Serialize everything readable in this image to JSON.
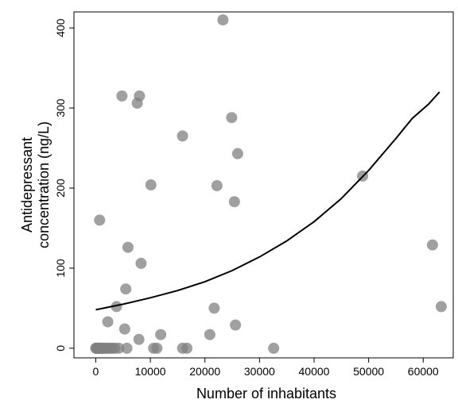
{
  "chart_data": {
    "type": "scatter",
    "title": "",
    "xlabel": "Number of inhabitants",
    "ylabel_line1": "Antidepressant",
    "ylabel_line2": "concentration (ng/L)",
    "xlim": [
      -4000,
      65500
    ],
    "ylim": [
      -12,
      420
    ],
    "xticks": [
      0,
      10000,
      20000,
      30000,
      40000,
      50000,
      60000
    ],
    "xtick_labels": [
      "0",
      "10000",
      "20000",
      "30000",
      "40000",
      "50000",
      "60000"
    ],
    "yticks": [
      0,
      100,
      200,
      300,
      400
    ],
    "ytick_labels": [
      "0",
      "100",
      "200",
      "300",
      "400"
    ],
    "grid": false,
    "legend": "none",
    "point_color": "#808080",
    "curve_color": "#000000",
    "points": [
      {
        "x": 0,
        "y": 0
      },
      {
        "x": 100,
        "y": 0
      },
      {
        "x": 200,
        "y": 0
      },
      {
        "x": 300,
        "y": 0
      },
      {
        "x": 400,
        "y": 0
      },
      {
        "x": 500,
        "y": 0
      },
      {
        "x": 600,
        "y": 0
      },
      {
        "x": 700,
        "y": 0
      },
      {
        "x": 800,
        "y": 0
      },
      {
        "x": 900,
        "y": 0
      },
      {
        "x": 1000,
        "y": 0
      },
      {
        "x": 1200,
        "y": 0
      },
      {
        "x": 1500,
        "y": 0
      },
      {
        "x": 1800,
        "y": 0
      },
      {
        "x": 2000,
        "y": 0
      },
      {
        "x": 2400,
        "y": 0
      },
      {
        "x": 2800,
        "y": 0
      },
      {
        "x": 3100,
        "y": 0
      },
      {
        "x": 3500,
        "y": 0
      },
      {
        "x": 4200,
        "y": 0
      },
      {
        "x": 5700,
        "y": 0
      },
      {
        "x": 10600,
        "y": 0
      },
      {
        "x": 11200,
        "y": 0
      },
      {
        "x": 15900,
        "y": 0
      },
      {
        "x": 16700,
        "y": 0
      },
      {
        "x": 32600,
        "y": 0
      },
      {
        "x": 700,
        "y": 160
      },
      {
        "x": 2200,
        "y": 33
      },
      {
        "x": 3800,
        "y": 52
      },
      {
        "x": 4800,
        "y": 315
      },
      {
        "x": 5300,
        "y": 24
      },
      {
        "x": 5500,
        "y": 74
      },
      {
        "x": 5900,
        "y": 126
      },
      {
        "x": 7600,
        "y": 306
      },
      {
        "x": 8000,
        "y": 315
      },
      {
        "x": 7900,
        "y": 11
      },
      {
        "x": 8300,
        "y": 106
      },
      {
        "x": 10100,
        "y": 204
      },
      {
        "x": 11900,
        "y": 17
      },
      {
        "x": 15900,
        "y": 265
      },
      {
        "x": 20900,
        "y": 17
      },
      {
        "x": 21700,
        "y": 50
      },
      {
        "x": 22200,
        "y": 203
      },
      {
        "x": 23300,
        "y": 410
      },
      {
        "x": 24900,
        "y": 288
      },
      {
        "x": 25400,
        "y": 183
      },
      {
        "x": 25600,
        "y": 29
      },
      {
        "x": 26000,
        "y": 243
      },
      {
        "x": 48900,
        "y": 215
      },
      {
        "x": 61700,
        "y": 129
      },
      {
        "x": 63300,
        "y": 52
      }
    ],
    "fitted_curve": [
      {
        "x": 0,
        "y": 48
      },
      {
        "x": 5000,
        "y": 55
      },
      {
        "x": 10000,
        "y": 63
      },
      {
        "x": 15000,
        "y": 72
      },
      {
        "x": 20000,
        "y": 83
      },
      {
        "x": 25000,
        "y": 97
      },
      {
        "x": 30000,
        "y": 114
      },
      {
        "x": 35000,
        "y": 134
      },
      {
        "x": 40000,
        "y": 158
      },
      {
        "x": 45000,
        "y": 187
      },
      {
        "x": 50000,
        "y": 222
      },
      {
        "x": 55000,
        "y": 262
      },
      {
        "x": 58000,
        "y": 287
      },
      {
        "x": 61000,
        "y": 305
      },
      {
        "x": 63000,
        "y": 320
      }
    ]
  }
}
